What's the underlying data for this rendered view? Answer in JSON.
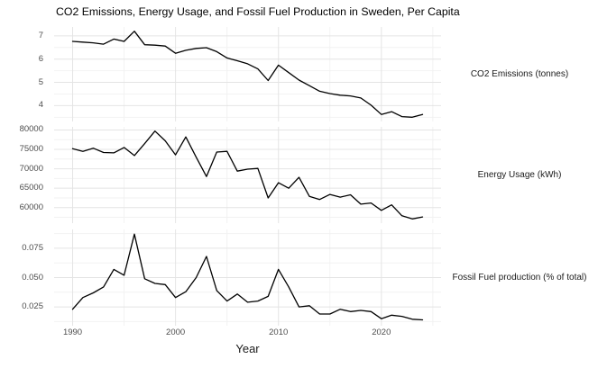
{
  "title": "CO2 Emissions, Energy Usage, and Fossil Fuel Production in Sweden, Per Capita",
  "colors": {
    "line": "#000000",
    "grid_major": "#e4e4e4",
    "grid_minor": "#f2f2f2",
    "axis_text": "#4d4d4d",
    "strip_text": "#1a1a1a",
    "background": "#ffffff"
  },
  "chart_data": {
    "type": "line",
    "faceted": true,
    "title": "CO2 Emissions, Energy Usage, and Fossil Fuel Production in Sweden, Per Capita",
    "xlabel": "Year",
    "grid": true,
    "legend_position": "none",
    "x": [
      1990,
      1991,
      1992,
      1993,
      1994,
      1995,
      1996,
      1997,
      1998,
      1999,
      2000,
      2001,
      2002,
      2003,
      2004,
      2005,
      2006,
      2007,
      2008,
      2009,
      2010,
      2011,
      2012,
      2013,
      2014,
      2015,
      2016,
      2017,
      2018,
      2019,
      2020,
      2021,
      2022,
      2023,
      2024
    ],
    "xlim": [
      1988.2,
      2025.8
    ],
    "xticks": [
      1990,
      2000,
      2010,
      2020
    ],
    "xtick_labels": [
      "1990",
      "2000",
      "2010",
      "2020"
    ],
    "xticks_minor": [
      1995,
      2005,
      2015,
      2025
    ],
    "facets": [
      {
        "key": "co2",
        "label": "CO2 Emissions (tonnes)",
        "ylim": [
          3.32,
          7.38
        ],
        "yticks": [
          4,
          5,
          6,
          7
        ],
        "ytick_labels": [
          "4",
          "5",
          "6",
          "7"
        ],
        "yticks_minor": [
          3.5,
          4.5,
          5.5,
          6.5
        ],
        "values": [
          6.76,
          6.73,
          6.7,
          6.64,
          6.86,
          6.76,
          7.2,
          6.62,
          6.6,
          6.56,
          6.25,
          6.38,
          6.46,
          6.49,
          6.32,
          6.05,
          5.93,
          5.8,
          5.58,
          5.08,
          5.74,
          5.42,
          5.1,
          4.86,
          4.62,
          4.52,
          4.45,
          4.42,
          4.33,
          4.02,
          3.62,
          3.74,
          3.53,
          3.5,
          3.62
        ]
      },
      {
        "key": "energy",
        "label": "Energy Usage (kWh)",
        "ylim": [
          56000,
          80800
        ],
        "yticks": [
          60000,
          65000,
          70000,
          75000,
          80000
        ],
        "ytick_labels": [
          "60000",
          "65000",
          "70000",
          "75000",
          "80000"
        ],
        "yticks_minor": [
          57500,
          62500,
          67500,
          72500,
          77500
        ],
        "values": [
          75200,
          74500,
          75300,
          74200,
          74100,
          75500,
          73400,
          76500,
          79700,
          77200,
          73600,
          78200,
          73000,
          68000,
          74300,
          74500,
          69400,
          69900,
          70100,
          62500,
          66400,
          65000,
          67800,
          62900,
          62100,
          63400,
          62700,
          63300,
          60900,
          61200,
          59300,
          60700,
          57900,
          57100,
          57600
        ]
      },
      {
        "key": "fossil",
        "label": "Fossil Fuel production (% of total)",
        "ylim": [
          0.009,
          0.091
        ],
        "yticks": [
          0.025,
          0.05,
          0.075
        ],
        "ytick_labels": [
          "0.025",
          "0.050",
          "0.075"
        ],
        "yticks_minor": [
          0.0125,
          0.0375,
          0.0625,
          0.0875
        ],
        "values": [
          0.023,
          0.033,
          0.037,
          0.042,
          0.057,
          0.052,
          0.087,
          0.049,
          0.045,
          0.044,
          0.033,
          0.038,
          0.05,
          0.068,
          0.039,
          0.03,
          0.036,
          0.029,
          0.03,
          0.034,
          0.057,
          0.042,
          0.025,
          0.026,
          0.019,
          0.019,
          0.023,
          0.021,
          0.022,
          0.021,
          0.015,
          0.018,
          0.017,
          0.0145,
          0.014
        ]
      }
    ]
  }
}
